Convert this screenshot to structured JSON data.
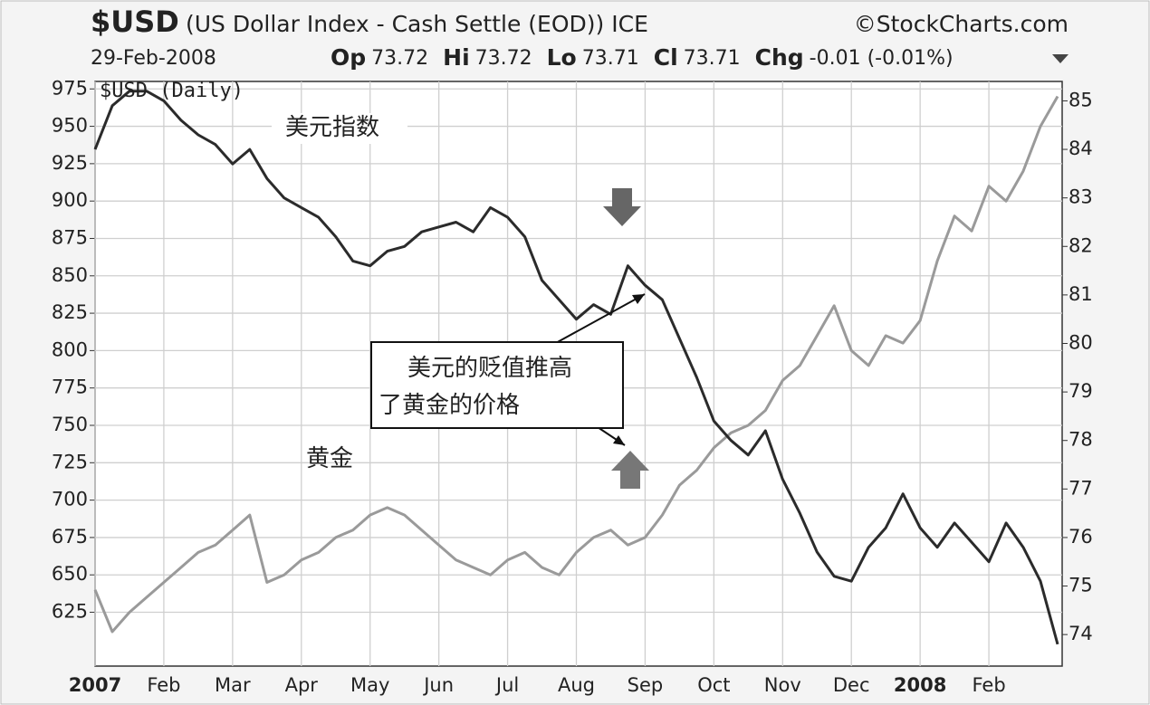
{
  "chart_data": {
    "type": "line",
    "title": "$USD",
    "subtitle": "(US Dollar Index - Cash Settle (EOD)) ICE",
    "source": "©StockCharts.com",
    "date": "29-Feb-2008",
    "quote": [
      {
        "label": "Op",
        "value": "73.72"
      },
      {
        "label": "Hi",
        "value": "73.72"
      },
      {
        "label": "Lo",
        "value": "73.71"
      },
      {
        "label": "Cl",
        "value": "73.71"
      },
      {
        "label": "Chg",
        "value": "-0.01 (-0.01%)"
      }
    ],
    "plot_label": "$USD (Daily)",
    "annotations": {
      "usd": "美元指数",
      "gold": "黄金",
      "callout": [
        "美元的贬值推高",
        "了黄金的价格"
      ]
    },
    "categories": [
      "2007",
      null,
      null,
      null,
      "Feb",
      null,
      null,
      null,
      "Mar",
      null,
      null,
      null,
      "Apr",
      null,
      null,
      null,
      "May",
      null,
      null,
      null,
      "Jun",
      null,
      null,
      null,
      "Jul",
      null,
      null,
      null,
      "Aug",
      null,
      null,
      null,
      "Sep",
      null,
      null,
      null,
      "Oct",
      null,
      null,
      null,
      "Nov",
      null,
      null,
      null,
      "Dec",
      null,
      null,
      null,
      "2008",
      null,
      null,
      null,
      "Feb",
      null,
      null,
      null,
      null
    ],
    "series": [
      {
        "name": "黄金",
        "color": "#9a9a9a",
        "axis": "y",
        "values": [
          640,
          612,
          625,
          635,
          645,
          655,
          665,
          670,
          680,
          690,
          645,
          650,
          660,
          665,
          675,
          680,
          690,
          695,
          690,
          680,
          670,
          660,
          655,
          650,
          660,
          665,
          655,
          650,
          665,
          675,
          680,
          670,
          675,
          690,
          710,
          720,
          735,
          745,
          750,
          760,
          780,
          790,
          810,
          830,
          800,
          790,
          810,
          805,
          820,
          860,
          890,
          880,
          910,
          900,
          920,
          950,
          970
        ]
      },
      {
        "name": "美元指数",
        "color": "#2b2b2b",
        "axis": "y2",
        "values": [
          84.0,
          84.9,
          85.2,
          85.2,
          85.0,
          84.6,
          84.3,
          84.1,
          83.7,
          84.0,
          83.4,
          83.0,
          82.8,
          82.6,
          82.2,
          81.7,
          81.6,
          81.9,
          82.0,
          82.3,
          82.4,
          82.5,
          82.3,
          82.8,
          82.6,
          82.2,
          81.3,
          80.9,
          80.5,
          80.8,
          80.6,
          81.6,
          81.2,
          80.9,
          80.1,
          79.3,
          78.4,
          78.0,
          77.7,
          78.2,
          77.2,
          76.5,
          75.7,
          75.2,
          75.1,
          75.8,
          76.2,
          76.9,
          76.2,
          75.8,
          76.3,
          75.9,
          75.5,
          76.3,
          75.8,
          75.1,
          73.8
        ]
      }
    ],
    "ylim": [
      589,
      980
    ],
    "yticks": [
      625,
      650,
      675,
      700,
      725,
      750,
      775,
      800,
      825,
      850,
      875,
      900,
      925,
      950,
      975
    ],
    "y2lim": [
      73.35,
      85.4
    ],
    "y2ticks": [
      74,
      75,
      76,
      77,
      78,
      79,
      80,
      81,
      82,
      83,
      84,
      85
    ],
    "grid": true
  }
}
